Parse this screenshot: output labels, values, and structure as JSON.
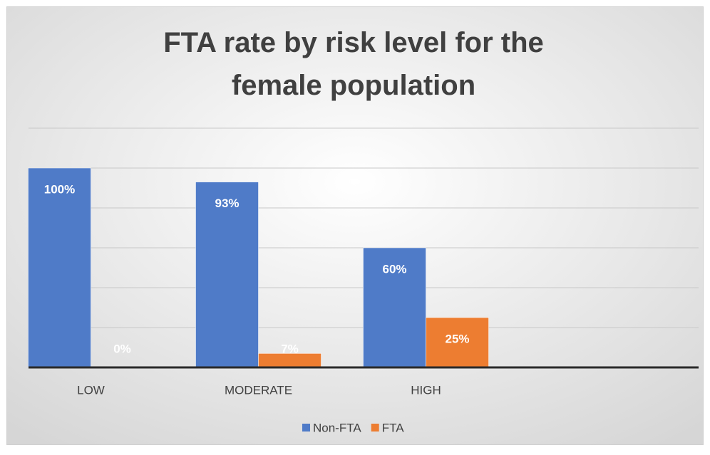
{
  "chart_data": {
    "type": "bar",
    "title": "FTA rate by risk level for the female population",
    "categories": [
      "LOW",
      "MODERATE",
      "HIGH",
      null
    ],
    "series": [
      {
        "name": "Non-FTA",
        "color": "#4f7bc8",
        "values": [
          100,
          93,
          60,
          null
        ],
        "value_labels": [
          "100%",
          "93%",
          "60%",
          null
        ]
      },
      {
        "name": "FTA",
        "color": "#ed7d31",
        "values": [
          0,
          7,
          25,
          null
        ],
        "value_labels": [
          "0%",
          "7%",
          "25%",
          null
        ]
      }
    ],
    "ylim": [
      0,
      120
    ],
    "yticks": [
      0,
      20,
      40,
      60,
      80,
      100,
      120
    ],
    "grid": true,
    "legend": "bottom"
  }
}
